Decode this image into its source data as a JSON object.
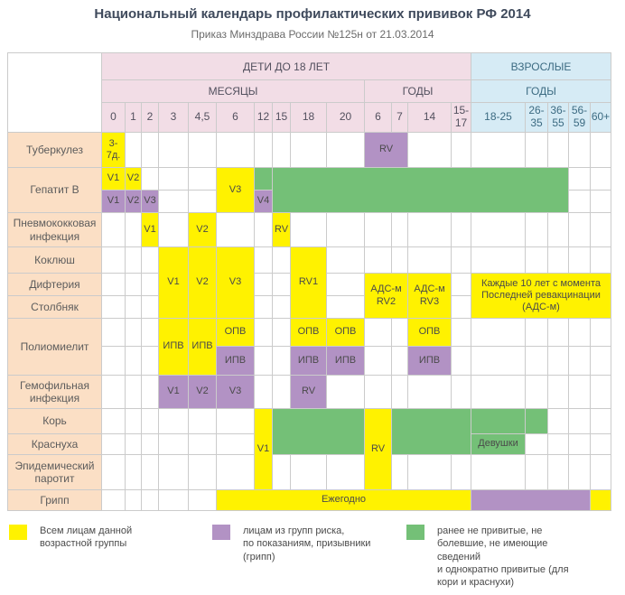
{
  "colors": {
    "yellow": "#FFF200",
    "purple": "#B292C4",
    "green": "#74C077",
    "peach": "#FBDFC5",
    "pink": "#F2DDE6",
    "blue": "#D6EBF5",
    "grid_line": "#CBCBCB"
  },
  "chart_data": {
    "type": "table",
    "title": "Национальный календарь профилактических прививок РФ 2014",
    "subtitle": "Приказ Минздрава России №125н от 21.03.2014",
    "column_groups": {
      "children": {
        "label": "ДЕТИ ДО 18 ЛЕТ",
        "months_label": "МЕСЯЦЫ",
        "years_label": "ГОДЫ",
        "month_cols": [
          "0",
          "1",
          "2",
          "3",
          "4,5",
          "6",
          "12",
          "15",
          "18",
          "20"
        ],
        "year_cols": [
          "6",
          "7",
          "14",
          "15-17"
        ]
      },
      "adults": {
        "label": "ВЗРОСЛЫЕ",
        "years_label": "ГОДЫ",
        "cols": [
          "18-25",
          "26-35",
          "36-55",
          "56-59",
          "60+"
        ]
      }
    },
    "rows": [
      {
        "label": "Туберкулез",
        "cells": [
          {
            "c": 0,
            "color": "yellow",
            "text": "3-7д."
          },
          {
            "c": 10,
            "span": 2,
            "color": "purple",
            "text": "RV"
          }
        ]
      },
      {
        "label": "Гепатит В",
        "labelspan": 2,
        "cells": [
          {
            "c": 0,
            "color": "yellow",
            "text": "V1"
          },
          {
            "c": 1,
            "color": "yellow",
            "text": "V2"
          },
          {
            "c": 5,
            "rows": 2,
            "color": "yellow",
            "text": "V3"
          },
          {
            "c": 6,
            "color": "green",
            "text": ""
          },
          {
            "c": 7,
            "span": 10,
            "rows": 2,
            "color": "green",
            "text": ""
          }
        ]
      },
      {
        "cells": [
          {
            "c": 0,
            "color": "purple",
            "text": "V1"
          },
          {
            "c": 1,
            "color": "purple",
            "text": "V2"
          },
          {
            "c": 2,
            "color": "purple",
            "text": "V3"
          },
          {
            "c": 6,
            "color": "purple",
            "text": "V4"
          }
        ]
      },
      {
        "label": "Пневмококковая инфекция",
        "cells": [
          {
            "c": 2,
            "color": "yellow",
            "text": "V1"
          },
          {
            "c": 4,
            "color": "yellow",
            "text": "V2"
          },
          {
            "c": 7,
            "color": "yellow",
            "text": "RV"
          }
        ]
      },
      {
        "label": "Коклюш",
        "cells": [
          {
            "c": 3,
            "rows": 3,
            "color": "yellow",
            "text": "V1"
          },
          {
            "c": 4,
            "rows": 3,
            "color": "yellow",
            "text": "V2"
          },
          {
            "c": 5,
            "rows": 3,
            "color": "yellow",
            "text": "V3"
          },
          {
            "c": 8,
            "rows": 3,
            "color": "yellow",
            "text": "RV1"
          }
        ]
      },
      {
        "label": "Дифтерия",
        "cells": [
          {
            "c": 10,
            "span": 2,
            "rows": 2,
            "color": "yellow",
            "text": "АДС-м RV2"
          },
          {
            "c": 12,
            "rows": 2,
            "color": "yellow",
            "text": "АДС-м RV3"
          },
          {
            "c": 14,
            "span": 5,
            "rows": 2,
            "color": "yellow",
            "text": "Каждые 10 лет с момента Последней ревакцинации (АДС-м)"
          }
        ]
      },
      {
        "label": "Столбняк",
        "cells": []
      },
      {
        "label": "Полиомиелит",
        "labelspan": 2,
        "cells": [
          {
            "c": 3,
            "rows": 2,
            "color": "yellow",
            "text": "ИПВ"
          },
          {
            "c": 4,
            "rows": 2,
            "color": "yellow",
            "text": "ИПВ"
          },
          {
            "c": 5,
            "color": "yellow",
            "text": "ОПВ"
          },
          {
            "c": 8,
            "color": "yellow",
            "text": "ОПВ"
          },
          {
            "c": 9,
            "color": "yellow",
            "text": "ОПВ"
          },
          {
            "c": 12,
            "color": "yellow",
            "text": "ОПВ"
          }
        ]
      },
      {
        "cells": [
          {
            "c": 5,
            "color": "purple",
            "text": "ИПВ"
          },
          {
            "c": 8,
            "color": "purple",
            "text": "ИПВ"
          },
          {
            "c": 9,
            "color": "purple",
            "text": "ИПВ"
          },
          {
            "c": 12,
            "color": "purple",
            "text": "ИПВ"
          }
        ]
      },
      {
        "label": "Гемофильная инфекция",
        "cells": [
          {
            "c": 3,
            "color": "purple",
            "text": "V1"
          },
          {
            "c": 4,
            "color": "purple",
            "text": "V2"
          },
          {
            "c": 5,
            "color": "purple",
            "text": "V3"
          },
          {
            "c": 8,
            "color": "purple",
            "text": "RV"
          }
        ]
      },
      {
        "label": "Корь",
        "cells": [
          {
            "c": 6,
            "rows": 3,
            "color": "yellow",
            "text": "V1"
          },
          {
            "c": 7,
            "span": 3,
            "rows": 2,
            "color": "green",
            "text": ""
          },
          {
            "c": 10,
            "rows": 3,
            "color": "yellow",
            "text": "RV"
          },
          {
            "c": 11,
            "span": 3,
            "rows": 2,
            "color": "green",
            "text": ""
          },
          {
            "c": 14,
            "color": "green",
            "text": ""
          },
          {
            "c": 15,
            "color": "green",
            "text": ""
          }
        ]
      },
      {
        "label": "Краснуха",
        "cells": [
          {
            "c": 14,
            "color": "green",
            "text": "Девушки"
          }
        ]
      },
      {
        "label": "Эпидемический паротит",
        "cells": []
      },
      {
        "label": "Грипп",
        "cells": [
          {
            "c": 5,
            "span": 9,
            "color": "yellow",
            "text": "Ежегодно"
          },
          {
            "c": 14,
            "span": 4,
            "color": "purple",
            "text": ""
          },
          {
            "c": 18,
            "color": "yellow",
            "text": ""
          }
        ]
      }
    ],
    "legend": [
      {
        "color": "yellow",
        "text": "Всем лицам данной\nвозрастной группы"
      },
      {
        "color": "purple",
        "text": "лицам из групп риска,\nпо показаниям, призывники\n(грипп)"
      },
      {
        "color": "green",
        "text": "ранее не привитые, не\nболевшие, не имеющие\nсведений\nи однократно привитые (для\nкори и краснухи)"
      }
    ]
  }
}
